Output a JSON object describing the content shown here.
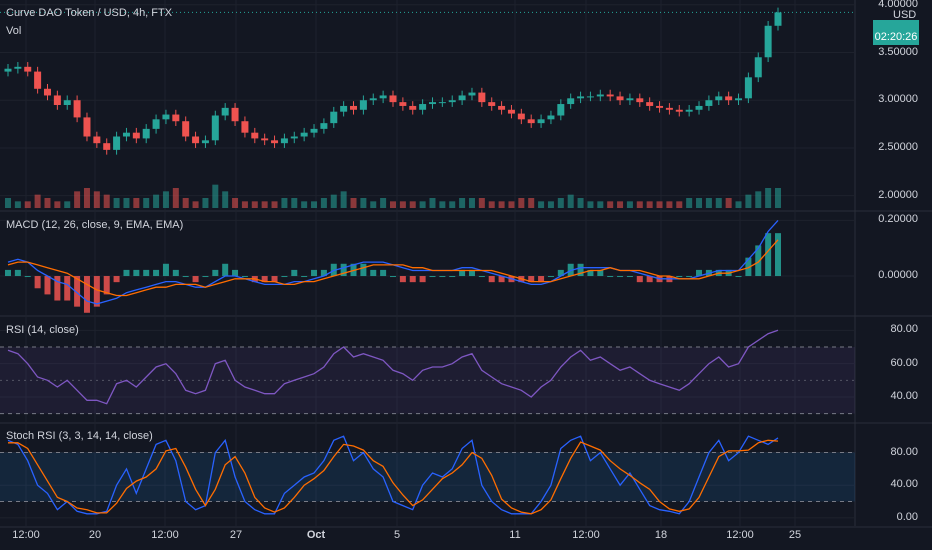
{
  "header": {
    "title": "Curve DAO Token / USD, 4h, FTX",
    "vol_label": "Vol",
    "currency": "USD"
  },
  "price_badge": {
    "countdown": "02:20:26",
    "color": "#26a69a"
  },
  "panes": {
    "price": {
      "yticks": [
        "4.00000",
        "3.50000",
        "3.00000",
        "2.50000",
        "2.00000"
      ],
      "ytick_values": [
        4.0,
        3.5,
        3.0,
        2.5,
        2.0
      ]
    },
    "macd": {
      "label": "MACD (12, 26, close, 9, EMA, EMA)",
      "yticks": [
        "0.20000",
        "0.00000"
      ],
      "ytick_values": [
        0.2,
        0.0
      ]
    },
    "rsi": {
      "label": "RSI (14, close)",
      "yticks": [
        "80.00",
        "60.00",
        "40.00"
      ],
      "ytick_values": [
        80,
        60,
        40
      ],
      "band": [
        30,
        70
      ]
    },
    "stoch": {
      "label": "Stoch RSI (3, 3, 14, 14, close)",
      "yticks": [
        "80.00",
        "40.00",
        "0.00"
      ],
      "ytick_values": [
        80,
        40,
        0
      ],
      "band": [
        20,
        80
      ]
    }
  },
  "xaxis": {
    "ticks": [
      "12:00",
      "20",
      "12:00",
      "27",
      "Oct",
      "5",
      "11",
      "12:00",
      "18",
      "12:00",
      "25"
    ]
  },
  "colors": {
    "up": "#26a69a",
    "down": "#ef5350",
    "macd": "#2962ff",
    "signal": "#ff6d00",
    "rsi": "#7e57c2",
    "stoch_k": "#2962ff",
    "stoch_d": "#ff6d00",
    "bg": "#131722",
    "grid": "#1e222d"
  },
  "chart_data": {
    "type": "line",
    "xlabel": "",
    "ylabel": "",
    "price_close": [
      3.33,
      3.35,
      3.3,
      3.12,
      3.05,
      2.95,
      3.0,
      2.82,
      2.62,
      2.55,
      2.48,
      2.62,
      2.66,
      2.6,
      2.7,
      2.8,
      2.85,
      2.78,
      2.62,
      2.55,
      2.58,
      2.84,
      2.92,
      2.78,
      2.66,
      2.6,
      2.58,
      2.55,
      2.6,
      2.62,
      2.66,
      2.7,
      2.76,
      2.88,
      2.94,
      2.9,
      3.0,
      3.02,
      3.05,
      2.98,
      2.94,
      2.9,
      2.96,
      2.98,
      2.98,
      3.0,
      3.05,
      3.08,
      2.98,
      2.94,
      2.9,
      2.86,
      2.8,
      2.76,
      2.8,
      2.84,
      2.96,
      3.02,
      3.04,
      3.04,
      3.06,
      3.04,
      3.0,
      3.02,
      2.98,
      2.94,
      2.92,
      2.9,
      2.88,
      2.9,
      2.94,
      3.0,
      3.04,
      3.0,
      3.02,
      3.24,
      3.45,
      3.78,
      3.92
    ],
    "macd": [
      0.05,
      0.06,
      0.05,
      0.02,
      0.0,
      -0.02,
      -0.03,
      -0.06,
      -0.09,
      -0.1,
      -0.09,
      -0.08,
      -0.06,
      -0.05,
      -0.04,
      -0.03,
      -0.02,
      -0.02,
      -0.03,
      -0.04,
      -0.04,
      -0.02,
      0.0,
      0.0,
      -0.01,
      -0.02,
      -0.03,
      -0.03,
      -0.03,
      -0.02,
      -0.02,
      -0.01,
      0.0,
      0.02,
      0.03,
      0.04,
      0.05,
      0.05,
      0.05,
      0.04,
      0.03,
      0.02,
      0.02,
      0.02,
      0.02,
      0.02,
      0.03,
      0.03,
      0.02,
      0.01,
      0.0,
      -0.01,
      -0.02,
      -0.03,
      -0.03,
      -0.02,
      0.0,
      0.02,
      0.03,
      0.03,
      0.03,
      0.03,
      0.02,
      0.02,
      0.01,
      0.0,
      -0.01,
      -0.01,
      -0.01,
      -0.01,
      0.0,
      0.01,
      0.02,
      0.02,
      0.02,
      0.06,
      0.1,
      0.16,
      0.2
    ],
    "signal": [
      0.04,
      0.05,
      0.05,
      0.04,
      0.03,
      0.02,
      0.01,
      -0.01,
      -0.03,
      -0.05,
      -0.06,
      -0.07,
      -0.07,
      -0.06,
      -0.05,
      -0.04,
      -0.04,
      -0.03,
      -0.03,
      -0.03,
      -0.04,
      -0.03,
      -0.02,
      -0.01,
      -0.01,
      -0.01,
      -0.02,
      -0.02,
      -0.03,
      -0.03,
      -0.02,
      -0.02,
      -0.01,
      0.0,
      0.01,
      0.02,
      0.03,
      0.04,
      0.04,
      0.04,
      0.04,
      0.03,
      0.03,
      0.02,
      0.02,
      0.02,
      0.02,
      0.02,
      0.02,
      0.02,
      0.01,
      0.0,
      -0.01,
      -0.02,
      -0.02,
      -0.02,
      -0.01,
      0.0,
      0.01,
      0.02,
      0.02,
      0.03,
      0.02,
      0.02,
      0.02,
      0.01,
      0.0,
      0.0,
      -0.01,
      -0.01,
      -0.01,
      0.0,
      0.01,
      0.01,
      0.02,
      0.03,
      0.05,
      0.09,
      0.13
    ],
    "rsi": [
      68,
      66,
      60,
      52,
      50,
      46,
      50,
      44,
      38,
      38,
      36,
      48,
      50,
      46,
      52,
      58,
      60,
      54,
      44,
      42,
      44,
      60,
      62,
      50,
      46,
      44,
      42,
      42,
      48,
      50,
      52,
      54,
      58,
      66,
      70,
      64,
      66,
      64,
      62,
      56,
      54,
      50,
      56,
      58,
      58,
      60,
      64,
      66,
      56,
      52,
      48,
      46,
      44,
      40,
      46,
      50,
      58,
      64,
      68,
      62,
      64,
      60,
      56,
      58,
      54,
      50,
      48,
      46,
      44,
      48,
      54,
      60,
      64,
      58,
      60,
      70,
      74,
      78,
      80
    ],
    "stoch_k": [
      95,
      90,
      70,
      40,
      30,
      10,
      20,
      8,
      5,
      5,
      8,
      40,
      60,
      30,
      60,
      90,
      95,
      70,
      20,
      10,
      15,
      80,
      95,
      50,
      20,
      10,
      5,
      5,
      30,
      40,
      50,
      55,
      70,
      95,
      100,
      70,
      80,
      60,
      50,
      20,
      15,
      10,
      40,
      55,
      50,
      60,
      85,
      95,
      40,
      20,
      10,
      5,
      5,
      5,
      20,
      40,
      85,
      95,
      100,
      70,
      80,
      60,
      40,
      55,
      35,
      15,
      10,
      8,
      5,
      20,
      50,
      80,
      95,
      70,
      80,
      100,
      95,
      90,
      98
    ],
    "stoch_d": [
      92,
      92,
      85,
      65,
      45,
      25,
      20,
      12,
      10,
      6,
      6,
      18,
      36,
      45,
      50,
      60,
      82,
      85,
      62,
      35,
      15,
      35,
      65,
      75,
      55,
      25,
      12,
      7,
      12,
      25,
      40,
      48,
      58,
      75,
      90,
      88,
      83,
      70,
      63,
      43,
      28,
      15,
      22,
      35,
      48,
      55,
      65,
      80,
      73,
      52,
      23,
      12,
      7,
      5,
      10,
      22,
      48,
      73,
      93,
      88,
      83,
      70,
      60,
      52,
      43,
      35,
      20,
      11,
      8,
      11,
      25,
      50,
      75,
      82,
      82,
      83,
      92,
      95,
      94
    ],
    "volume": [
      3,
      2,
      2,
      4,
      3,
      2,
      2,
      5,
      6,
      5,
      4,
      3,
      3,
      3,
      3,
      4,
      5,
      6,
      3,
      2,
      3,
      7,
      5,
      3,
      2,
      2,
      2,
      2,
      3,
      3,
      2,
      2,
      3,
      4,
      5,
      3,
      3,
      2,
      3,
      2,
      2,
      2,
      2,
      3,
      2,
      2,
      3,
      3,
      3,
      2,
      2,
      2,
      3,
      3,
      2,
      2,
      3,
      4,
      3,
      2,
      2,
      2,
      2,
      2,
      2,
      2,
      2,
      2,
      2,
      3,
      3,
      3,
      3,
      3,
      2,
      4,
      5,
      6,
      6
    ]
  }
}
